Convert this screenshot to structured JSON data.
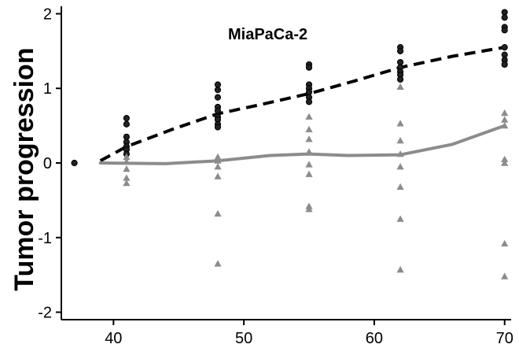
{
  "chart_data": {
    "type": "scatter",
    "title": "MiaPaCa-2",
    "xlabel": "",
    "ylabel": "Tumor progression",
    "xlim": [
      36,
      70.5
    ],
    "ylim": [
      -2.1,
      2.1
    ],
    "x_ticks": [
      40,
      50,
      60,
      70
    ],
    "y_ticks": [
      2,
      1,
      0,
      -1,
      -2
    ],
    "grid": false,
    "series": [
      {
        "marker": "circle",
        "color": "#222222",
        "points": [
          [
            37,
            0.0
          ],
          [
            41,
            0.6
          ],
          [
            41,
            0.52
          ],
          [
            41,
            0.35
          ],
          [
            41,
            0.28
          ],
          [
            41,
            0.22
          ],
          [
            41,
            0.18
          ],
          [
            41,
            0.12
          ],
          [
            48,
            1.05
          ],
          [
            48,
            0.98
          ],
          [
            48,
            0.88
          ],
          [
            48,
            0.75
          ],
          [
            48,
            0.7
          ],
          [
            48,
            0.62
          ],
          [
            48,
            0.58
          ],
          [
            48,
            0.52
          ],
          [
            48,
            0.48
          ],
          [
            55,
            1.32
          ],
          [
            55,
            1.28
          ],
          [
            55,
            1.05
          ],
          [
            55,
            1.0
          ],
          [
            55,
            0.95
          ],
          [
            55,
            0.88
          ],
          [
            55,
            0.82
          ],
          [
            62,
            1.55
          ],
          [
            62,
            1.5
          ],
          [
            62,
            1.35
          ],
          [
            62,
            1.28
          ],
          [
            62,
            1.22
          ],
          [
            62,
            1.18
          ],
          [
            62,
            1.12
          ],
          [
            70,
            2.02
          ],
          [
            70,
            1.95
          ],
          [
            70,
            1.82
          ],
          [
            70,
            1.78
          ],
          [
            70,
            1.55
          ],
          [
            70,
            1.45
          ],
          [
            70,
            1.38
          ],
          [
            70,
            1.32
          ]
        ],
        "trend": [
          [
            39,
            0.03
          ],
          [
            41,
            0.22
          ],
          [
            44.5,
            0.45
          ],
          [
            48,
            0.66
          ],
          [
            51.5,
            0.79
          ],
          [
            55,
            0.93
          ],
          [
            58.5,
            1.1
          ],
          [
            62,
            1.28
          ],
          [
            66,
            1.43
          ],
          [
            70,
            1.55
          ]
        ]
      },
      {
        "marker": "triangle",
        "color": "#8c8c8c",
        "points": [
          [
            41,
            0.08
          ],
          [
            41,
            0.02
          ],
          [
            41,
            -0.08
          ],
          [
            41,
            -0.2
          ],
          [
            41,
            -0.27
          ],
          [
            48,
            0.08
          ],
          [
            48,
            0.03
          ],
          [
            48,
            -0.05
          ],
          [
            48,
            -0.18
          ],
          [
            48,
            -0.68
          ],
          [
            48,
            -1.35
          ],
          [
            55,
            0.62
          ],
          [
            55,
            0.45
          ],
          [
            55,
            0.32
          ],
          [
            55,
            0.15
          ],
          [
            55,
            -0.02
          ],
          [
            55,
            -0.15
          ],
          [
            55,
            -0.58
          ],
          [
            55,
            -0.62
          ],
          [
            62,
            1.02
          ],
          [
            62,
            0.53
          ],
          [
            62,
            0.3
          ],
          [
            62,
            0.12
          ],
          [
            62,
            -0.05
          ],
          [
            62,
            -0.32
          ],
          [
            62,
            -0.75
          ],
          [
            62,
            -1.43
          ],
          [
            70,
            0.67
          ],
          [
            70,
            0.58
          ],
          [
            70,
            0.5
          ],
          [
            70,
            0.05
          ],
          [
            70,
            0.0
          ],
          [
            70,
            -1.08
          ],
          [
            70,
            -1.52
          ]
        ],
        "trend": [
          [
            39,
            0.0
          ],
          [
            44,
            -0.01
          ],
          [
            48,
            0.03
          ],
          [
            52,
            0.1
          ],
          [
            55,
            0.12
          ],
          [
            58,
            0.1
          ],
          [
            62,
            0.11
          ],
          [
            66,
            0.25
          ],
          [
            70,
            0.5
          ]
        ]
      }
    ]
  }
}
